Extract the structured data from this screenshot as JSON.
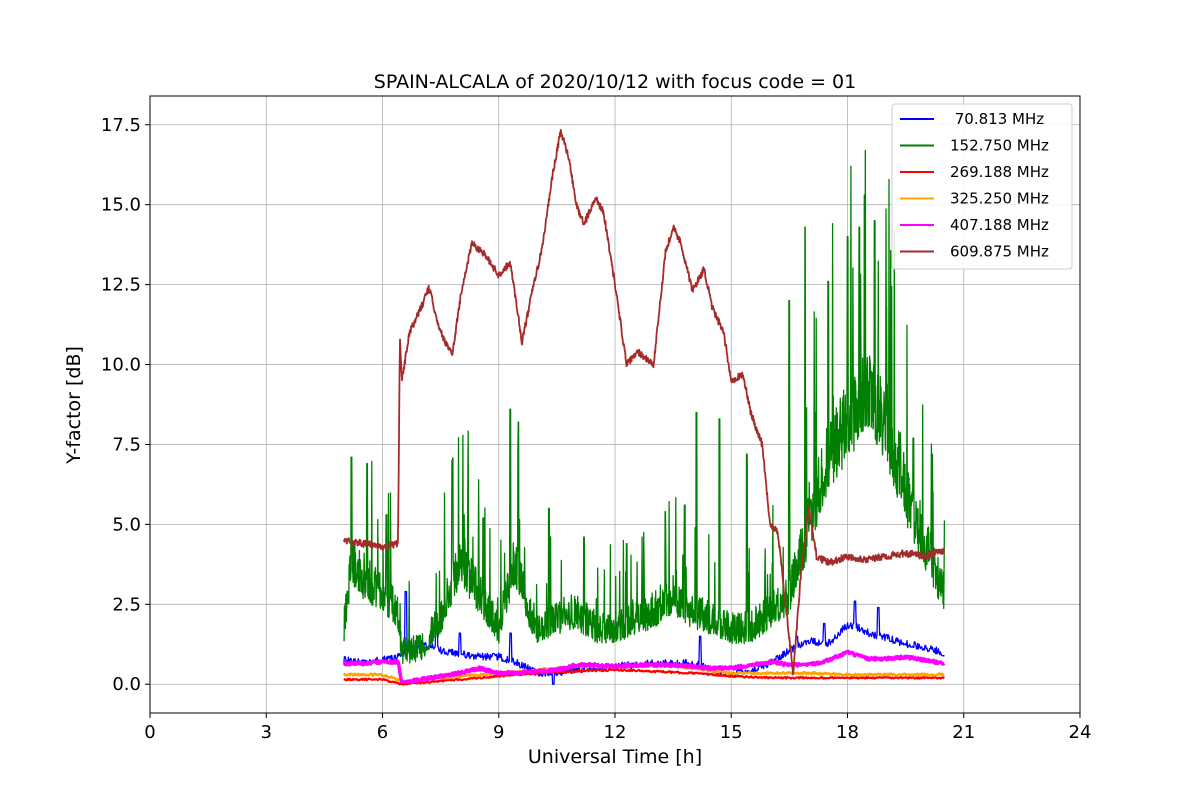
{
  "chart_data": {
    "type": "line",
    "title": "SPAIN-ALCALA of 2020/10/12 with focus code = 01",
    "xlabel": "Universal Time [h]",
    "ylabel": "Y-factor [dB]",
    "xlim": [
      0,
      24
    ],
    "ylim": [
      -0.9,
      18.4
    ],
    "xticks": [
      0,
      3,
      6,
      9,
      12,
      15,
      18,
      21,
      24
    ],
    "xtick_labels": [
      "0",
      "3",
      "6",
      "9",
      "12",
      "15",
      "18",
      "21",
      "24"
    ],
    "yticks": [
      0.0,
      2.5,
      5.0,
      7.5,
      10.0,
      12.5,
      15.0,
      17.5
    ],
    "ytick_labels": [
      "0.0",
      "2.5",
      "5.0",
      "7.5",
      "10.0",
      "12.5",
      "15.0",
      "17.5"
    ],
    "grid": true,
    "legend_position": "upper-right",
    "series": [
      {
        "name": " 70.813 MHz",
        "color": "#0000ff",
        "x": [
          5.0,
          5.5,
          6.0,
          6.4,
          6.5,
          7.0,
          7.5,
          8.0,
          8.5,
          9.0,
          9.5,
          10.0,
          10.5,
          11.0,
          12.0,
          13.0,
          14.0,
          14.5,
          15.0,
          15.5,
          16.0,
          16.5,
          17.0,
          17.5,
          18.0,
          18.3,
          18.6,
          19.0,
          19.5,
          20.0,
          20.5
        ],
        "y": [
          0.7,
          0.6,
          0.7,
          0.8,
          0.9,
          1.2,
          1.0,
          0.9,
          0.8,
          0.8,
          0.6,
          0.3,
          0.3,
          0.4,
          0.5,
          0.6,
          0.6,
          0.4,
          0.3,
          0.4,
          0.6,
          1.0,
          1.3,
          1.2,
          1.8,
          1.7,
          1.5,
          1.4,
          1.2,
          1.1,
          0.9
        ],
        "spikes": [
          [
            6.6,
            2.9
          ],
          [
            7.4,
            2.1
          ],
          [
            8.0,
            1.6
          ],
          [
            9.3,
            1.6
          ],
          [
            10.4,
            0.0
          ],
          [
            14.2,
            1.5
          ],
          [
            16.7,
            1.5
          ],
          [
            17.4,
            1.9
          ],
          [
            18.2,
            2.6
          ],
          [
            18.8,
            2.4
          ]
        ]
      },
      {
        "name": "152.750 MHz",
        "color": "#008000",
        "x": [
          5.0,
          5.2,
          5.5,
          6.0,
          6.4,
          6.5,
          7.0,
          7.5,
          8.0,
          8.5,
          9.0,
          9.4,
          9.8,
          10.0,
          10.5,
          11.0,
          11.5,
          12.0,
          12.5,
          13.0,
          13.5,
          14.0,
          14.5,
          15.0,
          15.5,
          16.0,
          16.5,
          17.0,
          17.5,
          18.0,
          18.5,
          19.0,
          19.5,
          20.0,
          20.5
        ],
        "y": [
          1.5,
          3.5,
          3.0,
          2.5,
          2.0,
          0.8,
          0.9,
          1.8,
          3.5,
          2.5,
          1.5,
          3.5,
          2.0,
          1.5,
          1.8,
          2.0,
          1.5,
          1.5,
          1.8,
          2.0,
          2.5,
          2.0,
          1.8,
          1.5,
          1.5,
          2.0,
          2.5,
          4.5,
          6.5,
          7.5,
          8.5,
          7.5,
          5.5,
          4.0,
          2.5
        ],
        "spikes": [
          [
            5.2,
            7.1
          ],
          [
            5.6,
            6.9
          ],
          [
            6.1,
            5.3
          ],
          [
            7.8,
            7.0
          ],
          [
            8.6,
            5.2
          ],
          [
            9.3,
            8.6
          ],
          [
            9.5,
            8.2
          ],
          [
            10.3,
            5.5
          ],
          [
            11.2,
            4.6
          ],
          [
            12.3,
            4.4
          ],
          [
            13.3,
            5.4
          ],
          [
            13.8,
            5.6
          ],
          [
            14.1,
            8.5
          ],
          [
            14.7,
            8.3
          ],
          [
            15.4,
            7.2
          ],
          [
            16.5,
            12.0
          ],
          [
            16.9,
            14.3
          ],
          [
            17.5,
            12.6
          ],
          [
            18.0,
            14.0
          ],
          [
            18.3,
            14.3
          ],
          [
            18.7,
            14.5
          ],
          [
            19.0,
            11.8
          ],
          [
            19.7,
            7.7
          ],
          [
            20.2,
            6.0
          ]
        ]
      },
      {
        "name": "269.188 MHz",
        "color": "#ff0000",
        "x": [
          5.0,
          6.0,
          6.5,
          7.0,
          8.0,
          9.0,
          10.0,
          11.0,
          12.0,
          13.0,
          14.0,
          15.0,
          16.0,
          17.0,
          18.0,
          19.0,
          20.0,
          20.5
        ],
        "y": [
          0.15,
          0.15,
          0.0,
          0.05,
          0.15,
          0.25,
          0.35,
          0.4,
          0.45,
          0.4,
          0.35,
          0.25,
          0.2,
          0.2,
          0.2,
          0.2,
          0.2,
          0.2
        ]
      },
      {
        "name": "325.250 MHz",
        "color": "#ffa500",
        "x": [
          5.0,
          6.0,
          6.5,
          7.0,
          8.0,
          9.0,
          10.0,
          11.0,
          12.0,
          13.0,
          14.0,
          15.0,
          16.0,
          17.0,
          18.0,
          19.0,
          20.0,
          20.5
        ],
        "y": [
          0.3,
          0.3,
          0.1,
          0.15,
          0.25,
          0.35,
          0.45,
          0.55,
          0.55,
          0.6,
          0.5,
          0.35,
          0.35,
          0.35,
          0.3,
          0.3,
          0.3,
          0.3
        ]
      },
      {
        "name": "407.188 MHz",
        "color": "#ff00ff",
        "x": [
          5.0,
          5.5,
          6.0,
          6.4,
          6.5,
          7.0,
          7.5,
          8.0,
          8.5,
          9.0,
          9.5,
          10.0,
          10.5,
          11.0,
          11.5,
          12.0,
          12.5,
          13.0,
          13.5,
          14.0,
          14.5,
          15.0,
          15.5,
          16.0,
          16.5,
          17.0,
          17.5,
          18.0,
          18.5,
          19.0,
          19.5,
          20.0,
          20.5
        ],
        "y": [
          0.65,
          0.65,
          0.7,
          0.7,
          0.05,
          0.15,
          0.25,
          0.35,
          0.5,
          0.35,
          0.35,
          0.4,
          0.45,
          0.6,
          0.6,
          0.55,
          0.6,
          0.6,
          0.6,
          0.55,
          0.5,
          0.5,
          0.6,
          0.7,
          0.6,
          0.6,
          0.75,
          1.0,
          0.8,
          0.8,
          0.85,
          0.75,
          0.65
        ]
      },
      {
        "name": "609.875 MHz",
        "color": "#a52a2a",
        "x": [
          5.0,
          5.5,
          6.0,
          6.4,
          6.45,
          6.5,
          6.7,
          7.0,
          7.2,
          7.5,
          7.8,
          8.0,
          8.3,
          8.6,
          9.0,
          9.3,
          9.6,
          9.9,
          10.1,
          10.4,
          10.6,
          10.8,
          11.0,
          11.2,
          11.5,
          11.7,
          12.0,
          12.3,
          12.6,
          13.0,
          13.3,
          13.5,
          13.7,
          14.0,
          14.3,
          14.5,
          14.8,
          15.0,
          15.3,
          15.5,
          15.8,
          16.0,
          16.2,
          16.4,
          16.6,
          16.8,
          17.0,
          17.2,
          17.5,
          18.0,
          18.5,
          19.0,
          19.5,
          20.0,
          20.5
        ],
        "y": [
          4.5,
          4.4,
          4.3,
          4.4,
          10.9,
          9.5,
          11.0,
          11.8,
          12.4,
          11.0,
          10.3,
          12.0,
          13.8,
          13.5,
          12.8,
          13.2,
          10.7,
          12.5,
          13.5,
          16.0,
          17.3,
          16.5,
          15.0,
          14.4,
          15.2,
          14.8,
          12.5,
          10.0,
          10.4,
          10.0,
          13.5,
          14.3,
          13.8,
          12.3,
          13.0,
          11.8,
          11.0,
          9.5,
          9.7,
          8.5,
          7.5,
          5.0,
          4.8,
          2.5,
          0.3,
          3.5,
          5.5,
          4.0,
          3.8,
          4.0,
          3.9,
          4.0,
          4.1,
          4.0,
          4.2
        ]
      }
    ]
  }
}
